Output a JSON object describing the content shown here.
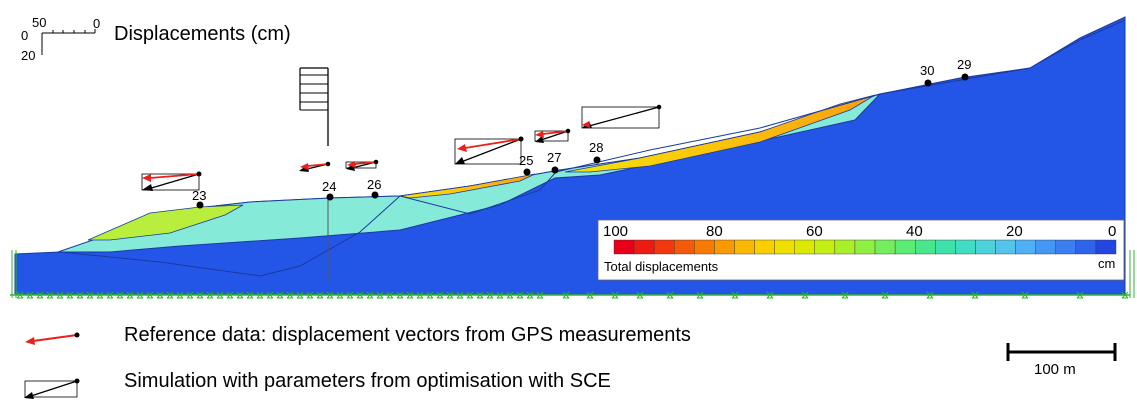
{
  "title": "Displacements (cm)",
  "vector_scale": {
    "labels": [
      "0",
      "50",
      "0",
      "20"
    ]
  },
  "points": [
    "23",
    "24",
    "25",
    "26",
    "27",
    "28",
    "29",
    "30"
  ],
  "colorbar": {
    "ticks": [
      "100",
      "80",
      "60",
      "40",
      "20",
      "0"
    ],
    "label": "Total displacements",
    "unit": "cm",
    "colors": [
      "#e8001a",
      "#ee1a14",
      "#f2380e",
      "#f55a0a",
      "#f77a06",
      "#f99a04",
      "#fbb802",
      "#f9cf00",
      "#efe000",
      "#dbea00",
      "#c4ef12",
      "#aaf02a",
      "#8ff043",
      "#74ee5c",
      "#5ceb74",
      "#48e78e",
      "#3ee2a8",
      "#42dcc2",
      "#4ed2da",
      "#55c4ec",
      "#4fb0f4",
      "#4497f4",
      "#3a7ef0",
      "#2e64ea",
      "#2346e0"
    ]
  },
  "scale_bar": {
    "label": "100 m"
  },
  "legend": [
    {
      "text": "Reference data: displacement vectors from GPS measurements",
      "color": "#e8211b"
    },
    {
      "text": "Simulation with parameters from optimisation with SCE",
      "color": "#000000"
    }
  ],
  "colors": {
    "slope_dark": "#2356e6",
    "slope_cyan": "#86ead9",
    "slope_lime": "#b9ee3c",
    "mesh_green": "#2fb52f"
  }
}
